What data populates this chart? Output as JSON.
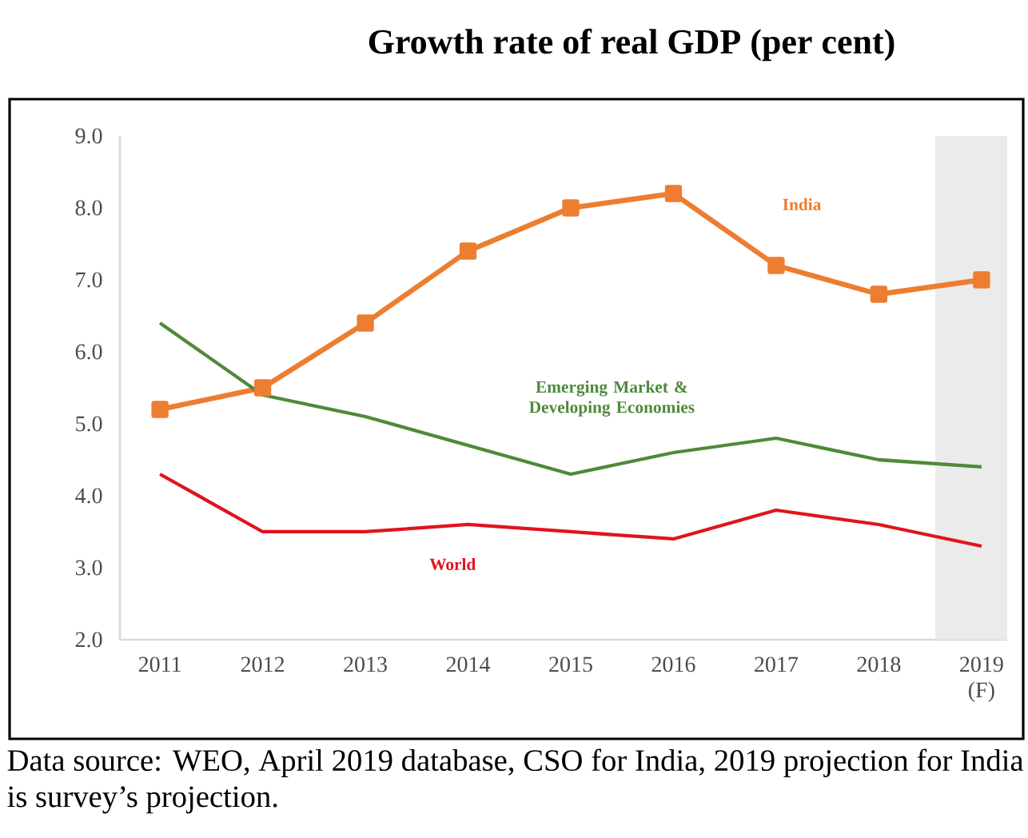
{
  "chart_data": {
    "type": "line",
    "title": "Growth rate of real GDP (per cent)",
    "categories": [
      "2011",
      "2012",
      "2013",
      "2014",
      "2015",
      "2016",
      "2017",
      "2018",
      "2019 (F)"
    ],
    "series": [
      {
        "name": "India",
        "color": "#ed7d31",
        "marker": "square",
        "values": [
          5.2,
          5.5,
          6.4,
          7.4,
          8.0,
          8.2,
          7.2,
          6.8,
          7.0
        ]
      },
      {
        "name": "Emerging Market & Developing Economies",
        "color": "#4e8a3a",
        "marker": "none",
        "values": [
          6.4,
          5.4,
          5.1,
          4.7,
          4.3,
          4.6,
          4.8,
          4.5,
          4.4
        ]
      },
      {
        "name": "World",
        "color": "#e0141e",
        "marker": "none",
        "values": [
          4.3,
          3.5,
          3.5,
          3.6,
          3.5,
          3.4,
          3.8,
          3.6,
          3.3
        ]
      }
    ],
    "ylim": [
      2,
      9
    ],
    "yticks": [
      {
        "value": 2,
        "label": "2.0"
      },
      {
        "value": 3,
        "label": "3.0"
      },
      {
        "value": 4,
        "label": "4.0"
      },
      {
        "value": 5,
        "label": "5.0"
      },
      {
        "value": 6,
        "label": "6.0"
      },
      {
        "value": 7,
        "label": "7.0"
      },
      {
        "value": 8,
        "label": "8.0"
      },
      {
        "value": 9,
        "label": "9.0"
      }
    ],
    "bands": [
      {
        "axis": "x",
        "from": "2019 (F)",
        "to": "2019 (F)",
        "color": "#ebebeb"
      }
    ],
    "grid": false,
    "legend": false,
    "annotations": [
      "Data source: WEO, April 2019 database, CSO for India, 2019 projection for India is survey’s projection."
    ]
  }
}
